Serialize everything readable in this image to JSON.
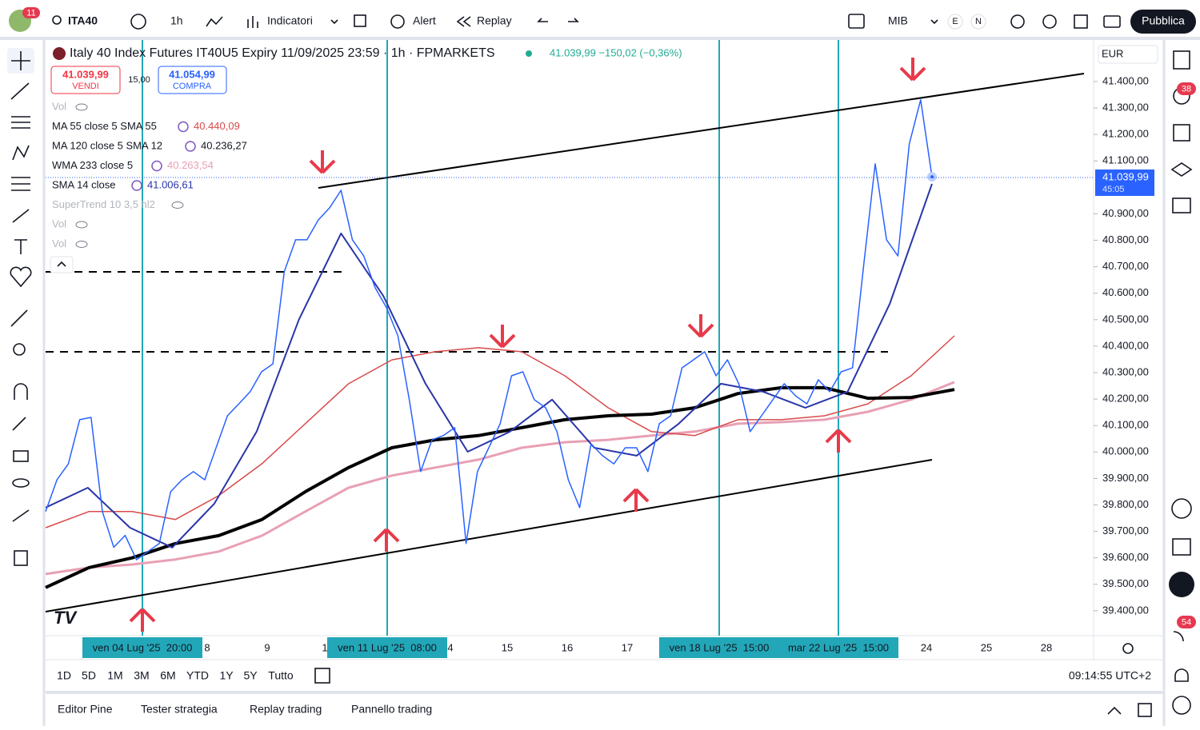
{
  "toolbar": {
    "badge": "11",
    "symbol": "ITA40",
    "interval": "1h",
    "indicators": "Indicatori",
    "alert": "Alert",
    "replay": "Replay",
    "exchange": "MIB",
    "e": "E",
    "n": "N",
    "publish": "Pubblica"
  },
  "legend": {
    "title": "Italy 40 Index Futures IT40U5 Expiry 11/09/2025 23:59 · 1h · FPMARKETS",
    "quote": "41.039,99 −150,02 (−0,36%)",
    "sell_price": "41.039,99",
    "sell": "VENDI",
    "spread": "15,00",
    "buy_price": "41.054,99",
    "buy": "COMPRA",
    "rows": [
      {
        "name": "Vol"
      },
      {
        "name": "MA 55 close 5 SMA 55",
        "value": "40.440,09"
      },
      {
        "name": "MA 120 close 5 SMA 12",
        "value": "40.236,27"
      },
      {
        "name": "WMA 233 close 5",
        "value": "40.263,54"
      },
      {
        "name": "SMA 14 close",
        "value": "41.006,61"
      },
      {
        "name": "SuperTrend 10 3,5 hl2"
      },
      {
        "name": "Vol"
      },
      {
        "name": "Vol"
      }
    ]
  },
  "chart": {
    "currency": "EUR",
    "ylim": [
      39306,
      41557
    ],
    "yticks": [
      {
        "value": 41400,
        "label": "41.400,00"
      },
      {
        "value": 41300,
        "label": "41.300,00"
      },
      {
        "value": 41200,
        "label": "41.200,00"
      },
      {
        "value": 41100,
        "label": "41.100,00"
      },
      {
        "value": 40900,
        "label": "40.900,00"
      },
      {
        "value": 40800,
        "label": "40.800,00"
      },
      {
        "value": 40700,
        "label": "40.700,00"
      },
      {
        "value": 40600,
        "label": "40.600,00"
      },
      {
        "value": 40500,
        "label": "40.500,00"
      },
      {
        "value": 40400,
        "label": "40.400,00"
      },
      {
        "value": 40300,
        "label": "40.300,00"
      },
      {
        "value": 40200,
        "label": "40.200,00"
      },
      {
        "value": 40100,
        "label": "40.100,00"
      },
      {
        "value": 40000,
        "label": "40.000,00"
      },
      {
        "value": 39900,
        "label": "39.900,00"
      },
      {
        "value": 39800,
        "label": "39.800,00"
      },
      {
        "value": 39700,
        "label": "39.700,00"
      },
      {
        "value": 39600,
        "label": "39.600,00"
      },
      {
        "value": 39500,
        "label": "39.500,00"
      },
      {
        "value": 39400,
        "label": "39.400,00"
      }
    ],
    "price_tag": "41.039,99",
    "countdown": "45:05",
    "xlabels": [
      "ven 04 Lug '25  20:00",
      "8",
      "9",
      "1",
      "ven 11 Lug '25  08:00",
      "4",
      "15",
      "16",
      "17",
      "ven 18 Lug '25  15:00",
      "mar 22 Lug '25  15:00",
      "24",
      "25",
      "28"
    ],
    "series": {
      "price": {
        "color": "#2962ff",
        "values": [
          39775,
          39895,
          39955,
          40122,
          40131,
          39775,
          39640,
          39685,
          39593,
          39624,
          39654,
          39850,
          39895,
          39926,
          39895,
          40016,
          40137,
          40182,
          40228,
          40303,
          40333,
          40681,
          40802,
          40802,
          40877,
          40923,
          40989,
          40802,
          40741,
          40621,
          40545,
          40439,
          40198,
          39926,
          40046,
          40062,
          40092,
          39654,
          39926,
          40016,
          40107,
          40288,
          40303,
          40198,
          40167,
          40077,
          39895,
          39790,
          40031,
          39986,
          39955,
          40016,
          40016,
          39926,
          40107,
          40137,
          40318,
          40348,
          40379,
          40288,
          40348,
          40258,
          40077,
          40137,
          40198,
          40258,
          40212,
          40182,
          40273,
          40228,
          40303,
          40318,
          40711,
          41089,
          40802,
          40741,
          41164,
          41331,
          41040
        ]
      },
      "sma14": {
        "color": "#2a35a8",
        "values": [
          39790,
          39865,
          39714,
          39639,
          39805,
          40077,
          40500,
          40826,
          40590,
          40258,
          40001,
          40077,
          40198,
          40016,
          39986,
          40107,
          40258,
          40228,
          40167,
          40228,
          40560,
          41013
        ]
      },
      "ma55": {
        "color": "#d84a4a",
        "values": [
          39714,
          39775,
          39775,
          39745,
          39835,
          39956,
          40107,
          40258,
          40348,
          40379,
          40394,
          40379,
          40288,
          40167,
          40077,
          40062,
          40122,
          40122,
          40137,
          40182,
          40288,
          40439
        ]
      },
      "ma120": {
        "color": "#000000",
        "values": [
          39488,
          39563,
          39600,
          39654,
          39684,
          39745,
          39850,
          39941,
          40016,
          40046,
          40062,
          40092,
          40122,
          40137,
          40143,
          40167,
          40221,
          40243,
          40243,
          40203,
          40206,
          40236
        ]
      },
      "wma233": {
        "color": "#e8a0b4",
        "values": [
          39539,
          39563,
          39575,
          39594,
          39624,
          39684,
          39775,
          39865,
          39911,
          39941,
          39971,
          40016,
          40037,
          40046,
          40062,
          40077,
          40107,
          40113,
          40122,
          40152,
          40198,
          40264
        ]
      }
    }
  },
  "ranges": [
    "1D",
    "5D",
    "1M",
    "3M",
    "6M",
    "YTD",
    "1Y",
    "5Y",
    "Tutto"
  ],
  "clock": "09:14:55 UTC+2",
  "tabs": [
    "Editor Pine",
    "Tester strategia",
    "Replay trading",
    "Pannello trading"
  ],
  "badges": {
    "alerts": "38",
    "notifications": "54"
  }
}
